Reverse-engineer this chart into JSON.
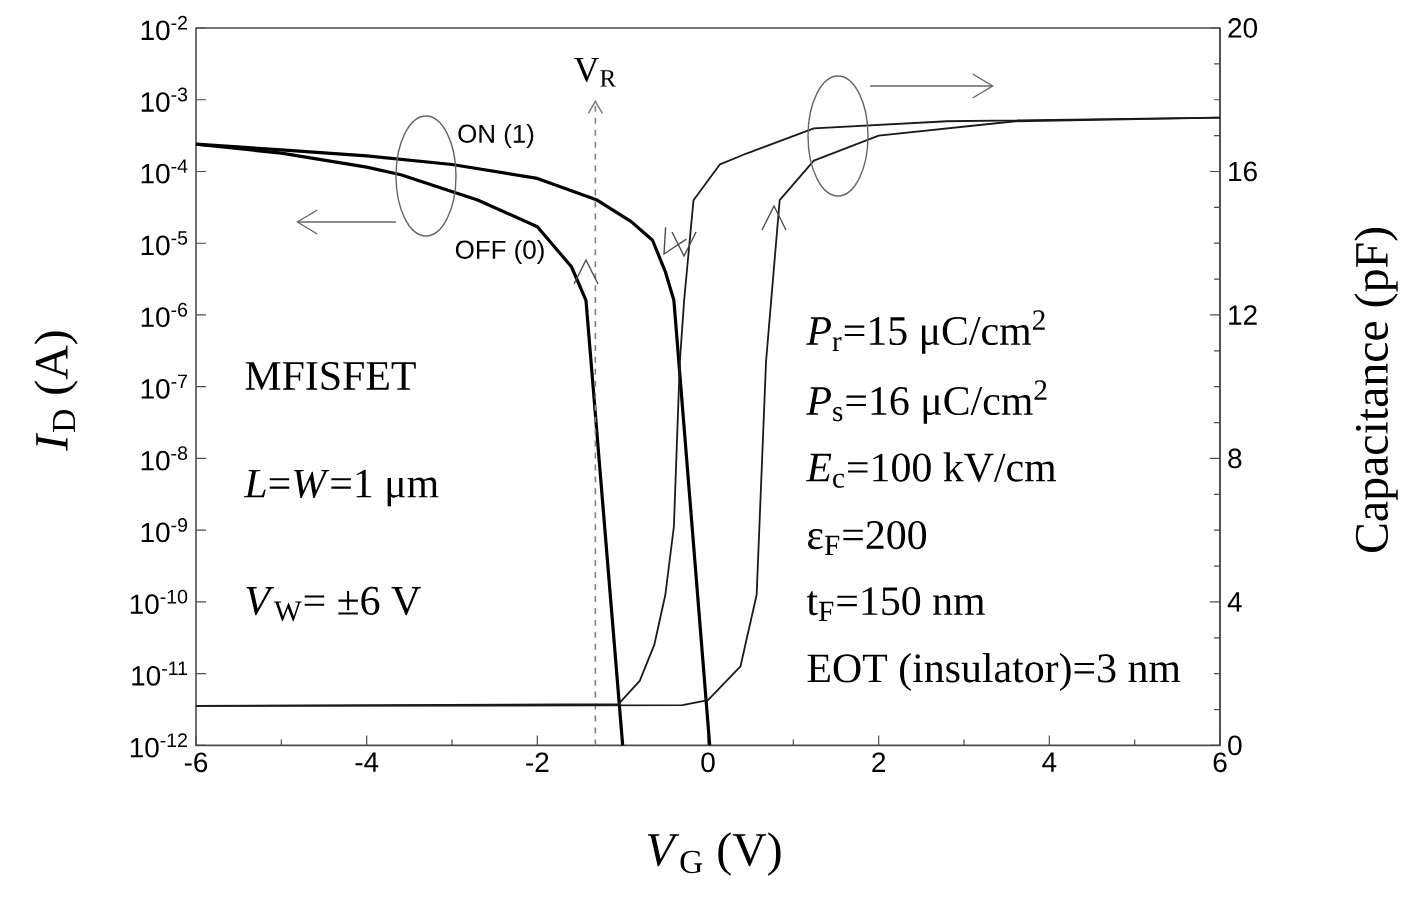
{
  "chart_data": {
    "type": "line",
    "xlabel": "*V*$_{G}$ (V)",
    "ylabel": "*I*$_{D}$ (A)",
    "y2label": "Capacitance (pF)",
    "xlim": [
      -6,
      6
    ],
    "xticks": [
      -6,
      -4,
      -2,
      0,
      2,
      4,
      6
    ],
    "log": "y",
    "ylim": [
      1e-12,
      0.01
    ],
    "yticks": [
      {
        "value": 1e-12,
        "label": "10$^{-12}$"
      },
      {
        "value": 1e-11,
        "label": "10$^{-11}$"
      },
      {
        "value": 1e-10,
        "label": "10$^{-10}$"
      },
      {
        "value": 1e-09,
        "label": "10$^{-9}$"
      },
      {
        "value": 1e-08,
        "label": "10$^{-8}$"
      },
      {
        "value": 1e-07,
        "label": "10$^{-7}$"
      },
      {
        "value": 1e-06,
        "label": "10$^{-6}$"
      },
      {
        "value": 1e-05,
        "label": "10$^{-5}$"
      },
      {
        "value": 0.0001,
        "label": "10$^{-4}$"
      },
      {
        "value": 0.001,
        "label": "10$^{-3}$"
      },
      {
        "value": 0.01,
        "label": "10$^{-2}$"
      }
    ],
    "y2lim": [
      0,
      20
    ],
    "y2ticks": [
      0,
      4,
      8,
      12,
      16,
      20
    ],
    "grid": false,
    "marker": "none",
    "line_style": "solid",
    "series": [
      {
        "name": "ON (1)",
        "color": "#000000",
        "x": [
          -6,
          -5,
          -4,
          -3,
          -2,
          -1.3,
          -0.9,
          -0.65,
          -0.5,
          -0.4,
          0.02
        ],
        "values": [
          0.00024,
          0.0002,
          0.000165,
          0.000125,
          8e-05,
          4e-05,
          2e-05,
          1.1e-05,
          4e-06,
          1.6e-06,
          1e-12
        ]
      },
      {
        "name": "OFF (0)",
        "color": "#000000",
        "x": [
          -6,
          -5,
          -4,
          -3.6,
          -2.7,
          -2.0,
          -1.6,
          -1.43,
          -1.0
        ],
        "values": [
          0.00024,
          0.00018,
          0.000115,
          9e-05,
          4e-05,
          1.7e-05,
          4.7e-06,
          1.6e-06,
          1e-12
        ]
      },
      {
        "color": "#1a1a1a",
        "axis": "y2",
        "x": [
          -6,
          -1.05,
          -0.8,
          -0.63,
          -0.5,
          -0.4,
          -0.33,
          -0.28,
          -0.17,
          0.14,
          0.45,
          1.24,
          2.8,
          6
        ],
        "values": [
          1.1,
          1.15,
          1.8,
          2.8,
          4.2,
          6.1,
          10.7,
          12.4,
          15.2,
          16.2,
          16.5,
          17.2,
          17.4,
          17.5
        ]
      },
      {
        "color": "#1a1a1a",
        "axis": "y2",
        "x": [
          -6,
          -0.3,
          0,
          0.38,
          0.57,
          0.68,
          0.74,
          0.84,
          1.24,
          2.0,
          3.6,
          6
        ],
        "values": [
          1.1,
          1.12,
          1.26,
          2.2,
          4.2,
          10.7,
          12.4,
          15.2,
          16.3,
          17.0,
          17.4,
          17.5
        ]
      }
    ],
    "ref_lines": [
      {
        "axis": "x",
        "value": -1.32,
        "label": "V$_{R}$",
        "color": "#808080",
        "line_style": "dashed"
      }
    ],
    "annotations": [
      "MFISFET",
      "*L*=*W*=1 μm",
      "*V*$_{W}$= ±6 V",
      "*P*$_{r}$=15 μC/cm$^{2}$",
      "*P*$_{s}$=16 μC/cm$^{2}$",
      "*E*$_{c}$=100 kV/cm",
      "ε$_{F}$=200",
      "t$_{F}$=150 nm",
      "EOT (insulator)=3 nm"
    ]
  }
}
